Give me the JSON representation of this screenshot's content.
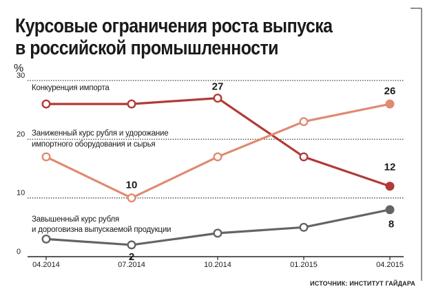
{
  "header": {
    "title_line1": "Курсовые ограничения роста выпуска",
    "title_line2": "в российской промышленности"
  },
  "source": "ИСТОЧНИК: ИНСТИТУТ ГАЙДАРА",
  "colors": {
    "series_1": "#b23a36",
    "series_2": "#e08a70",
    "series_3": "#646464",
    "gridline": "#333333",
    "text": "#1a1a1a"
  },
  "chart_data": {
    "type": "line",
    "title": "Курсовые ограничения роста выпуска в российской промышленности",
    "y_unit": "%",
    "ylim": [
      0,
      30
    ],
    "y_ticks": [
      "0",
      "10",
      "20",
      "30"
    ],
    "x": [
      "04.2014",
      "07.2014",
      "10.2014",
      "01.2015",
      "04.2015"
    ],
    "grid": "dotted-horizontal",
    "legend": "inline-labels",
    "series": [
      {
        "name": "Конкуренция импорта",
        "name_lines": [
          "Конкуренция импорта"
        ],
        "values": [
          26,
          26,
          27,
          17,
          12
        ],
        "labels": [
          null,
          null,
          "27",
          null,
          "12"
        ]
      },
      {
        "name": "Заниженный курс рубля и удорожание импортного оборудования и сырья",
        "name_lines": [
          "Заниженный курс рубля и удорожание",
          "импортного оборудования и сырья"
        ],
        "values": [
          17,
          10,
          17,
          23,
          26
        ],
        "labels": [
          null,
          "10",
          null,
          null,
          "26"
        ]
      },
      {
        "name": "Завышенный курс рубля и дороговизна выпускаемой продукции",
        "name_lines": [
          "Завышенный курс рубля",
          "и дороговизна выпускаемой продукции"
        ],
        "values": [
          3,
          2,
          4,
          5,
          8
        ],
        "labels": [
          null,
          "2",
          null,
          null,
          "8"
        ]
      }
    ]
  }
}
